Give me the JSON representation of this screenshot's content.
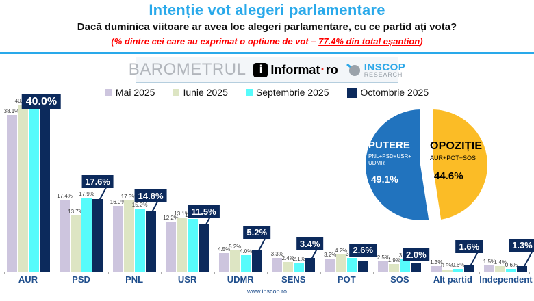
{
  "header": {
    "title": "Intenție vot alegeri parlamentare",
    "subtitle": "Dacă duminica viitoare ar avea loc alegeri parlamentare, cu ce partid ați vota?",
    "note_prefix": "(% dintre cei care au exprimat o optiune de vot – ",
    "note_highlight": "77.4% din total eșantion",
    "note_suffix": ")"
  },
  "logo_bar": {
    "barometrul": "BAROMETRUL",
    "informat_icon": "i",
    "informat_text1": "Informat",
    "informat_dot": "·",
    "informat_text2": "ro",
    "inscop_line1": "INSCOP",
    "inscop_line2": "RESEARCH"
  },
  "chart_data": [
    {
      "type": "bar",
      "categories": [
        "AUR",
        "PSD",
        "PNL",
        "USR",
        "UDMR",
        "SENS",
        "POT",
        "SOS",
        "Alt partid",
        "Independent"
      ],
      "series": [
        {
          "name": "Mai 2025",
          "color": "#CDC5DE",
          "values": [
            38.1,
            17.4,
            16.0,
            12.2,
            4.5,
            3.3,
            3.2,
            2.5,
            1.3,
            1.5
          ]
        },
        {
          "name": "Iunie 2025",
          "color": "#DDE5C3",
          "values": [
            40.5,
            13.7,
            17.3,
            13.1,
            5.2,
            2.4,
            4.2,
            1.9,
            0.5,
            1.4
          ]
        },
        {
          "name": "Septembrie 2025",
          "color": "#57FBFB",
          "values": [
            40.8,
            17.9,
            15.2,
            12.8,
            4.0,
            2.1,
            3.3,
            3.0,
            0.6,
            0.6
          ]
        },
        {
          "name": "Octombrie 2025",
          "color": "#0C2A5C",
          "values": [
            40.0,
            17.6,
            14.8,
            11.5,
            5.2,
            3.4,
            2.6,
            2.0,
            1.6,
            1.3
          ]
        }
      ],
      "value_suffix": "%",
      "ylim": [
        0,
        41
      ],
      "grid": false,
      "legend_position": "top"
    },
    {
      "type": "pie",
      "slices": [
        {
          "label": "PUTERE",
          "sublabel": "PNL+PSD+USR+ UDMR",
          "value": 49.1,
          "value_label": "49.1%",
          "color": "#2173BE",
          "text_color": "#FFFFFF"
        },
        {
          "label": "OPOZIȚIE",
          "sublabel": "AUR+POT+SOS",
          "value": 44.6,
          "value_label": "44.6%",
          "color": "#FBBC26",
          "text_color": "#000000"
        }
      ]
    }
  ],
  "footer": {
    "url": "www.inscop.ro"
  }
}
